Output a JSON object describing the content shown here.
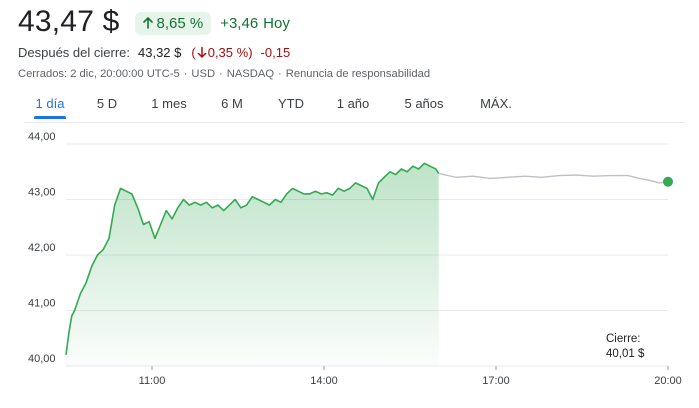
{
  "header": {
    "price": "43,47 $",
    "change_pct": "8,65 %",
    "change_abs": "+3,46",
    "change_period": "Hoy"
  },
  "after_hours": {
    "label": "Después del cierre:",
    "price": "43,32 $",
    "paren_open": "(",
    "pct": "0,35 %",
    "paren_close": ")",
    "abs": "-0,15"
  },
  "closed_info": {
    "closed": "Cerrados: 2 dic, 20:00:00 UTC-5",
    "currency": "USD",
    "exchange": "NASDAQ",
    "disclaimer": "Renuncia de responsabilidad",
    "separator": "·"
  },
  "tabs": [
    {
      "label": "1 día",
      "active": true
    },
    {
      "label": "5 D",
      "active": false
    },
    {
      "label": "1 mes",
      "active": false
    },
    {
      "label": "6 M",
      "active": false
    },
    {
      "label": "YTD",
      "active": false
    },
    {
      "label": "1 año",
      "active": false
    },
    {
      "label": "5 años",
      "active": false
    },
    {
      "label": "MÁX.",
      "active": false
    }
  ],
  "colors": {
    "up_green": "#34a853",
    "text_green": "#137333",
    "pill_bg": "#e6f4ea",
    "down_red": "#a50e0e",
    "after_hours_line": "#bdc1c6",
    "grid": "#e8eaed",
    "tab_active": "#1a73e8"
  },
  "icons": {
    "up": "arrow-up-icon",
    "down": "arrow-down-icon"
  },
  "chart_data": {
    "type": "line",
    "y_ticks": [
      "44,00",
      "43,00",
      "42,00",
      "41,00",
      "40,00"
    ],
    "ylim": [
      40,
      44
    ],
    "x_ticks": [
      "11:00",
      "14:00",
      "17:00",
      "20:00"
    ],
    "x_domain_hours": [
      9.5,
      20
    ],
    "grid": true,
    "previous_close_label": "Cierre:",
    "previous_close_value": "40,01 $",
    "previous_close": 40.01,
    "series": [
      {
        "segment": "regular-session",
        "color": "#34a853",
        "fill": true,
        "x_hours": [
          9.5,
          9.55,
          9.6,
          9.65,
          9.75,
          9.85,
          9.95,
          10.05,
          10.15,
          10.25,
          10.35,
          10.45,
          10.55,
          10.65,
          10.75,
          10.85,
          10.95,
          11.05,
          11.15,
          11.25,
          11.35,
          11.45,
          11.55,
          11.65,
          11.75,
          11.85,
          11.95,
          12.05,
          12.15,
          12.25,
          12.35,
          12.45,
          12.55,
          12.65,
          12.75,
          12.85,
          12.95,
          13.05,
          13.15,
          13.25,
          13.35,
          13.45,
          13.55,
          13.65,
          13.75,
          13.85,
          13.95,
          14.05,
          14.15,
          14.25,
          14.35,
          14.45,
          14.55,
          14.65,
          14.75,
          14.85,
          14.95,
          15.05,
          15.15,
          15.25,
          15.35,
          15.45,
          15.55,
          15.65,
          15.75,
          15.85,
          15.95,
          16.0
        ],
        "values": [
          40.2,
          40.6,
          40.9,
          41.0,
          41.3,
          41.5,
          41.8,
          42.0,
          42.1,
          42.3,
          42.9,
          43.2,
          43.15,
          43.1,
          42.85,
          42.55,
          42.6,
          42.3,
          42.55,
          42.8,
          42.65,
          42.85,
          43.0,
          42.9,
          42.95,
          42.9,
          42.95,
          42.85,
          42.9,
          42.8,
          42.9,
          43.0,
          42.85,
          42.9,
          43.05,
          43.0,
          42.95,
          42.9,
          43.0,
          42.95,
          43.1,
          43.2,
          43.15,
          43.1,
          43.1,
          43.15,
          43.1,
          43.12,
          43.08,
          43.2,
          43.15,
          43.2,
          43.3,
          43.25,
          43.2,
          43.0,
          43.3,
          43.4,
          43.5,
          43.45,
          43.55,
          43.5,
          43.6,
          43.55,
          43.65,
          43.6,
          43.55,
          43.47
        ]
      },
      {
        "segment": "after-hours",
        "color": "#bdc1c6",
        "fill": false,
        "x_hours": [
          16.0,
          16.3,
          16.6,
          16.9,
          17.2,
          17.5,
          17.8,
          18.1,
          18.4,
          18.7,
          19.0,
          19.3,
          19.5,
          19.7,
          19.85,
          20.0
        ],
        "values": [
          43.47,
          43.4,
          43.42,
          43.38,
          43.4,
          43.42,
          43.4,
          43.43,
          43.44,
          43.42,
          43.43,
          43.43,
          43.38,
          43.34,
          43.3,
          43.32
        ]
      }
    ]
  }
}
